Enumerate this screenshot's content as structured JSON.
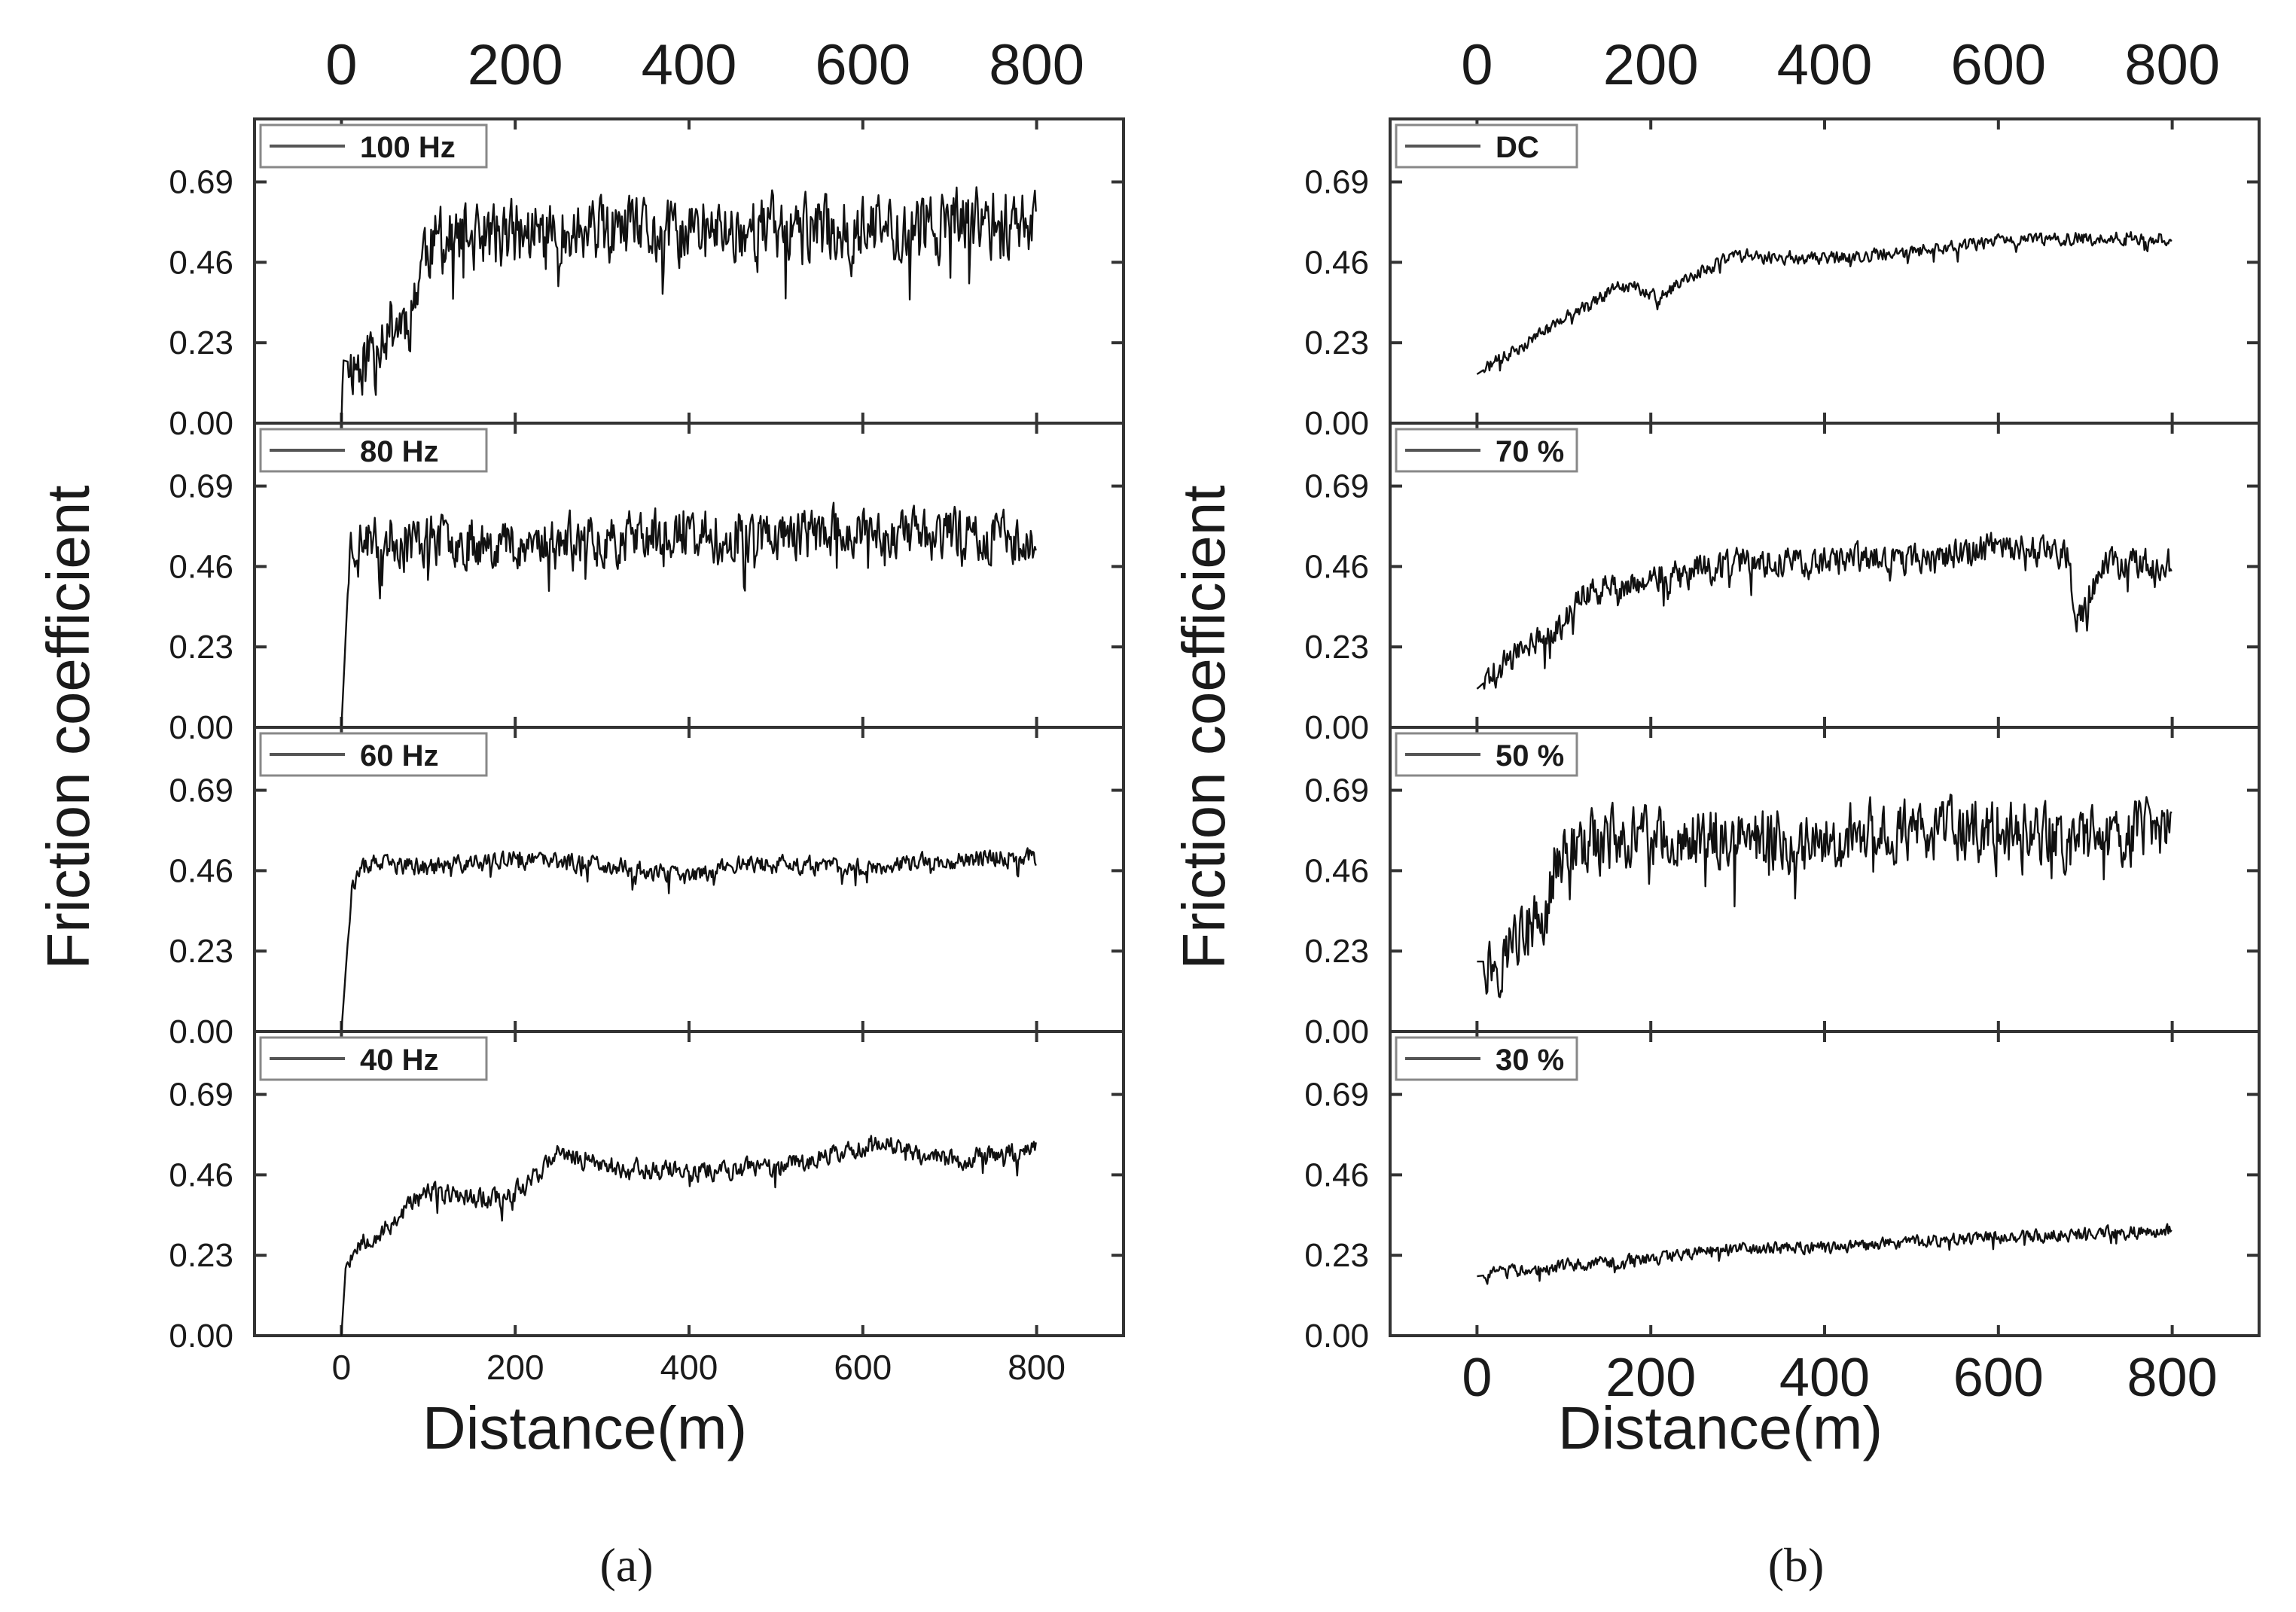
{
  "figure": {
    "ylabel": "Friction coefficient",
    "xlabel": "Distance(m)",
    "yticks": [
      "0.00",
      "0.23",
      "0.46",
      "0.69"
    ],
    "xticks": [
      "0",
      "200",
      "400",
      "600",
      "800"
    ],
    "caption_a": "(a)",
    "caption_b": "(b)"
  },
  "chart_data": [
    {
      "type": "line",
      "panel": "a",
      "xlim": [
        -100,
        900
      ],
      "ylim": [
        0,
        0.87
      ],
      "xlabel": "Distance(m)",
      "ylabel": "Friction coefficient",
      "subplots": [
        {
          "legend": "100 Hz",
          "points": [
            [
              0,
              0.0
            ],
            [
              2,
              0.18
            ],
            [
              15,
              0.17
            ],
            [
              30,
              0.18
            ],
            [
              40,
              0.26
            ],
            [
              60,
              0.28
            ],
            [
              80,
              0.31
            ],
            [
              95,
              0.5
            ],
            [
              120,
              0.52
            ],
            [
              200,
              0.54
            ],
            [
              300,
              0.54
            ],
            [
              400,
              0.54
            ],
            [
              500,
              0.56
            ],
            [
              600,
              0.55
            ],
            [
              700,
              0.57
            ],
            [
              800,
              0.58
            ]
          ],
          "noise": 0.13,
          "seed": 11
        },
        {
          "legend": "80 Hz",
          "points": [
            [
              0,
              0.0
            ],
            [
              10,
              0.53
            ],
            [
              50,
              0.54
            ],
            [
              200,
              0.53
            ],
            [
              300,
              0.54
            ],
            [
              400,
              0.55
            ],
            [
              500,
              0.55
            ],
            [
              600,
              0.56
            ],
            [
              700,
              0.55
            ],
            [
              800,
              0.54
            ]
          ],
          "noise": 0.1,
          "seed": 23
        },
        {
          "legend": "60 Hz",
          "points": [
            [
              0,
              0.0
            ],
            [
              12,
              0.42
            ],
            [
              30,
              0.48
            ],
            [
              100,
              0.47
            ],
            [
              200,
              0.49
            ],
            [
              300,
              0.48
            ],
            [
              400,
              0.44
            ],
            [
              450,
              0.48
            ],
            [
              600,
              0.47
            ],
            [
              750,
              0.5
            ],
            [
              800,
              0.5
            ]
          ],
          "noise": 0.035,
          "seed": 37
        },
        {
          "legend": "40 Hz",
          "points": [
            [
              0,
              0.0
            ],
            [
              5,
              0.2
            ],
            [
              20,
              0.27
            ],
            [
              50,
              0.3
            ],
            [
              80,
              0.38
            ],
            [
              100,
              0.41
            ],
            [
              190,
              0.39
            ],
            [
              250,
              0.52
            ],
            [
              320,
              0.48
            ],
            [
              400,
              0.47
            ],
            [
              500,
              0.48
            ],
            [
              620,
              0.55
            ],
            [
              700,
              0.5
            ],
            [
              800,
              0.53
            ]
          ],
          "noise": 0.04,
          "seed": 53
        }
      ]
    },
    {
      "type": "line",
      "panel": "b",
      "xlim": [
        -100,
        900
      ],
      "ylim": [
        0,
        0.87
      ],
      "xlabel": "Distance(m)",
      "ylabel": "Friction coefficient",
      "subplots": [
        {
          "legend": "DC",
          "points": [
            [
              0,
              0.14
            ],
            [
              50,
              0.22
            ],
            [
              100,
              0.3
            ],
            [
              170,
              0.4
            ],
            [
              210,
              0.36
            ],
            [
              260,
              0.44
            ],
            [
              300,
              0.48
            ],
            [
              400,
              0.47
            ],
            [
              500,
              0.49
            ],
            [
              600,
              0.52
            ],
            [
              700,
              0.53
            ],
            [
              800,
              0.53
            ]
          ],
          "noise": 0.025,
          "seed": 71
        },
        {
          "legend": "70 %",
          "points": [
            [
              0,
              0.11
            ],
            [
              50,
              0.22
            ],
            [
              100,
              0.3
            ],
            [
              120,
              0.38
            ],
            [
              200,
              0.42
            ],
            [
              300,
              0.47
            ],
            [
              400,
              0.48
            ],
            [
              500,
              0.48
            ],
            [
              600,
              0.52
            ],
            [
              680,
              0.5
            ],
            [
              690,
              0.28
            ],
            [
              720,
              0.47
            ],
            [
              800,
              0.47
            ]
          ],
          "noise": 0.06,
          "seed": 89
        },
        {
          "legend": "50 %",
          "points": [
            [
              0,
              0.2
            ],
            [
              30,
              0.2
            ],
            [
              40,
              0.27
            ],
            [
              80,
              0.32
            ],
            [
              90,
              0.5
            ],
            [
              150,
              0.55
            ],
            [
              250,
              0.55
            ],
            [
              350,
              0.54
            ],
            [
              500,
              0.58
            ],
            [
              600,
              0.57
            ],
            [
              700,
              0.55
            ],
            [
              800,
              0.58
            ]
          ],
          "noise": 0.12,
          "seed": 97
        },
        {
          "legend": "30 %",
          "points": [
            [
              0,
              0.17
            ],
            [
              100,
              0.2
            ],
            [
              200,
              0.22
            ],
            [
              300,
              0.25
            ],
            [
              400,
              0.25
            ],
            [
              500,
              0.27
            ],
            [
              600,
              0.28
            ],
            [
              700,
              0.29
            ],
            [
              800,
              0.3
            ]
          ],
          "noise": 0.025,
          "seed": 103
        }
      ]
    }
  ]
}
